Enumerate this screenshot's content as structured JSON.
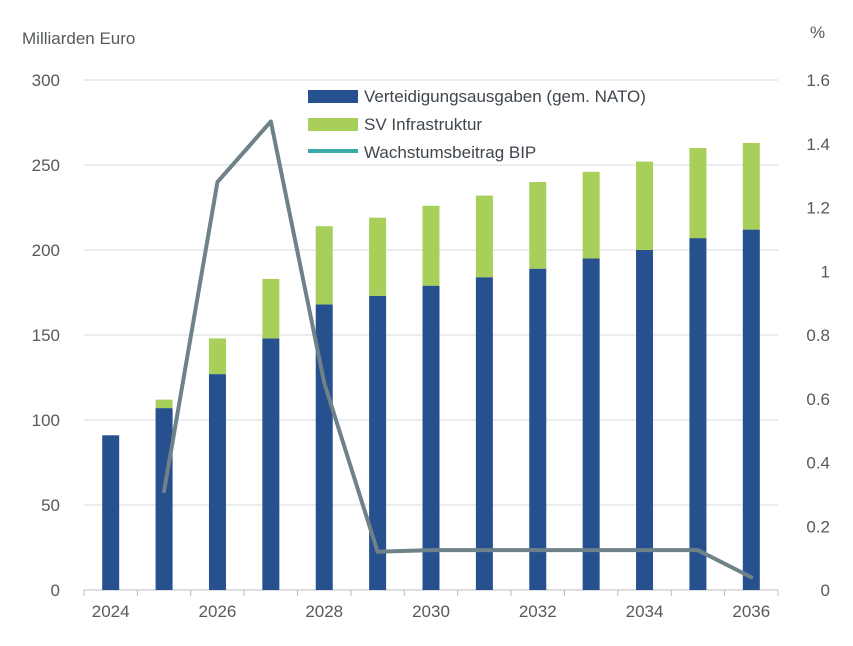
{
  "chart_data": {
    "type": "bar",
    "subtype": "stacked bar with line on secondary axis",
    "categories": [
      "2024",
      "2025",
      "2026",
      "2027",
      "2028",
      "2029",
      "2030",
      "2031",
      "2032",
      "2033",
      "2034",
      "2035",
      "2036"
    ],
    "x_tick_labels": [
      "2024",
      "2026",
      "2028",
      "2030",
      "2032",
      "2034",
      "2036"
    ],
    "left_axis": {
      "label": "Milliarden Euro",
      "ylim": [
        0,
        300
      ],
      "ticks": [
        "0",
        "50",
        "100",
        "150",
        "200",
        "250",
        "300"
      ]
    },
    "right_axis": {
      "label": "%",
      "ylim": [
        0,
        1.6
      ],
      "ticks": [
        "0",
        "0.2",
        "0.4",
        "0.6",
        "0.8",
        "1",
        "1.2",
        "1.4",
        "1.6"
      ]
    },
    "series": [
      {
        "name": "Verteidigungsausgaben (gem. NATO)",
        "kind": "bar",
        "axis": "left",
        "color": "#27508f",
        "values": [
          91,
          107,
          127,
          148,
          168,
          173,
          179,
          184,
          189,
          195,
          200,
          207,
          212
        ]
      },
      {
        "name": "SV Infrastruktur",
        "kind": "bar",
        "axis": "left",
        "color": "#a8cf5a",
        "values": [
          0,
          5,
          21,
          35,
          46,
          46,
          47,
          48,
          51,
          51,
          52,
          53,
          51
        ]
      },
      {
        "name": "Wachstumsbeitrag BIP",
        "kind": "line",
        "axis": "right",
        "color": "#6f8189",
        "legend_color": "#3aa9a9",
        "values": [
          null,
          0.31,
          1.28,
          1.47,
          0.65,
          0.12,
          0.125,
          0.125,
          0.125,
          0.125,
          0.125,
          0.125,
          0.04
        ]
      }
    ],
    "grid": true,
    "legend_position": "top-center"
  }
}
